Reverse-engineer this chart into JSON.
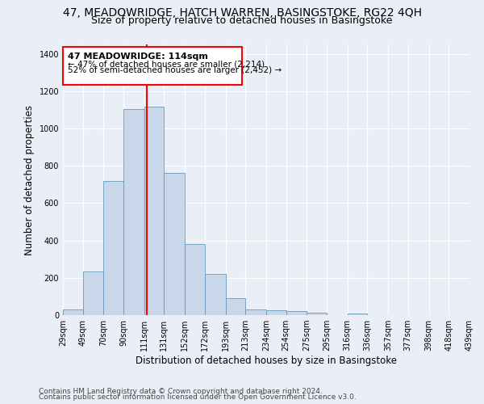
{
  "title": "47, MEADOWRIDGE, HATCH WARREN, BASINGSTOKE, RG22 4QH",
  "subtitle": "Size of property relative to detached houses in Basingstoke",
  "xlabel": "Distribution of detached houses by size in Basingstoke",
  "ylabel": "Number of detached properties",
  "footnote1": "Contains HM Land Registry data © Crown copyright and database right 2024.",
  "footnote2": "Contains public sector information licensed under the Open Government Licence v3.0.",
  "annotation_line1": "47 MEADOWRIDGE: 114sqm",
  "annotation_line2": "← 47% of detached houses are smaller (2,214)",
  "annotation_line3": "52% of semi-detached houses are larger (2,452) →",
  "bar_color": "#c8d8ea",
  "bar_edge_color": "#6699bb",
  "red_line_x": 114,
  "bin_edges": [
    29,
    49,
    70,
    90,
    111,
    131,
    152,
    172,
    193,
    213,
    234,
    254,
    275,
    295,
    316,
    336,
    357,
    377,
    398,
    418,
    439
  ],
  "bar_heights": [
    30,
    235,
    720,
    1105,
    1115,
    760,
    380,
    220,
    90,
    30,
    25,
    20,
    15,
    0,
    10,
    0,
    0,
    0,
    0,
    0
  ],
  "ylim": [
    0,
    1450
  ],
  "yticks": [
    0,
    200,
    400,
    600,
    800,
    1000,
    1200,
    1400
  ],
  "bg_color": "#eaeff7",
  "grid_color": "#ffffff",
  "title_fontsize": 10,
  "subtitle_fontsize": 9,
  "axis_label_fontsize": 8.5,
  "tick_fontsize": 7,
  "footnote_fontsize": 6.5
}
